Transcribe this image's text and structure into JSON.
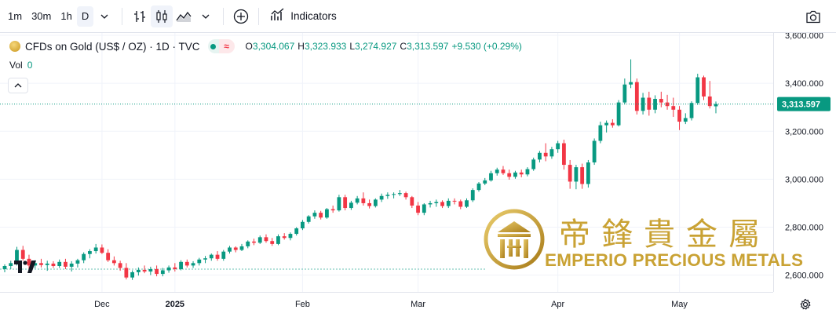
{
  "toolbar": {
    "intervals": [
      "1m",
      "30m",
      "1h",
      "D"
    ],
    "active_interval": "D",
    "indicators_label": "Indicators"
  },
  "legend": {
    "title": "CFDs on Gold (US$ / OZ) · 1D · TVC",
    "open_label": "O",
    "open": "3,304.067",
    "high_label": "H",
    "high": "3,323.933",
    "low_label": "L",
    "low": "3,274.927",
    "close_label": "C",
    "close": "3,313.597",
    "change": "+9.530 (+0.29%)",
    "vol_label": "Vol",
    "vol_value": "0",
    "pill_symbol": "≈"
  },
  "watermark": {
    "chinese": "帝鋒貴金屬",
    "english": "EMPERIO PRECIOUS METALS"
  },
  "colors": {
    "up": "#089981",
    "down": "#f23645",
    "grid": "#f0f3fa",
    "price_line": "#089981",
    "gold": "#c9a234"
  },
  "chart_data": {
    "type": "candlestick",
    "y_ticks": [
      "2,600.000",
      "2,800.000",
      "3,000.000",
      "3,200.000",
      "3,400.000",
      "3,600.000"
    ],
    "y_tick_values": [
      2600,
      2800,
      3000,
      3200,
      3400,
      3600
    ],
    "x_ticks": [
      "Dec",
      "2025",
      "Feb",
      "Mar",
      "Apr",
      "May"
    ],
    "ylim": [
      2530,
      3610
    ],
    "current_price": 3313.597,
    "current_price_label": "3,313.597",
    "reference_level": 2625,
    "grid": true,
    "candles": [
      [
        2625,
        2645,
        2612,
        2638
      ],
      [
        2638,
        2660,
        2625,
        2650
      ],
      [
        2650,
        2718,
        2640,
        2705
      ],
      [
        2705,
        2722,
        2660,
        2668
      ],
      [
        2668,
        2685,
        2625,
        2640
      ],
      [
        2640,
        2662,
        2628,
        2650
      ],
      [
        2650,
        2668,
        2632,
        2642
      ],
      [
        2642,
        2660,
        2618,
        2648
      ],
      [
        2648,
        2658,
        2630,
        2638
      ],
      [
        2638,
        2665,
        2630,
        2655
      ],
      [
        2655,
        2668,
        2625,
        2635
      ],
      [
        2635,
        2658,
        2615,
        2648
      ],
      [
        2648,
        2668,
        2632,
        2662
      ],
      [
        2662,
        2695,
        2650,
        2688
      ],
      [
        2688,
        2708,
        2670,
        2700
      ],
      [
        2700,
        2730,
        2690,
        2715
      ],
      [
        2715,
        2728,
        2688,
        2693
      ],
      [
        2693,
        2708,
        2655,
        2662
      ],
      [
        2662,
        2678,
        2640,
        2650
      ],
      [
        2650,
        2660,
        2618,
        2630
      ],
      [
        2630,
        2650,
        2582,
        2590
      ],
      [
        2590,
        2620,
        2580,
        2612
      ],
      [
        2612,
        2632,
        2598,
        2622
      ],
      [
        2622,
        2640,
        2608,
        2615
      ],
      [
        2615,
        2635,
        2600,
        2625
      ],
      [
        2625,
        2640,
        2595,
        2605
      ],
      [
        2605,
        2630,
        2595,
        2620
      ],
      [
        2620,
        2640,
        2610,
        2632
      ],
      [
        2632,
        2650,
        2615,
        2625
      ],
      [
        2625,
        2662,
        2620,
        2655
      ],
      [
        2655,
        2665,
        2632,
        2640
      ],
      [
        2640,
        2658,
        2630,
        2650
      ],
      [
        2650,
        2672,
        2640,
        2665
      ],
      [
        2665,
        2680,
        2650,
        2670
      ],
      [
        2670,
        2690,
        2660,
        2685
      ],
      [
        2685,
        2700,
        2660,
        2668
      ],
      [
        2668,
        2705,
        2660,
        2698
      ],
      [
        2698,
        2722,
        2690,
        2715
      ],
      [
        2715,
        2720,
        2695,
        2705
      ],
      [
        2705,
        2730,
        2700,
        2720
      ],
      [
        2720,
        2745,
        2712,
        2740
      ],
      [
        2740,
        2752,
        2725,
        2735
      ],
      [
        2735,
        2765,
        2730,
        2758
      ],
      [
        2758,
        2770,
        2735,
        2742
      ],
      [
        2742,
        2755,
        2722,
        2730
      ],
      [
        2730,
        2770,
        2725,
        2762
      ],
      [
        2762,
        2775,
        2748,
        2755
      ],
      [
        2755,
        2778,
        2745,
        2772
      ],
      [
        2772,
        2800,
        2765,
        2795
      ],
      [
        2795,
        2830,
        2788,
        2822
      ],
      [
        2822,
        2850,
        2815,
        2845
      ],
      [
        2845,
        2870,
        2835,
        2860
      ],
      [
        2860,
        2868,
        2832,
        2840
      ],
      [
        2840,
        2880,
        2835,
        2875
      ],
      [
        2875,
        2890,
        2860,
        2870
      ],
      [
        2870,
        2935,
        2865,
        2925
      ],
      [
        2925,
        2935,
        2870,
        2880
      ],
      [
        2880,
        2910,
        2872,
        2902
      ],
      [
        2902,
        2930,
        2895,
        2920
      ],
      [
        2920,
        2945,
        2890,
        2900
      ],
      [
        2900,
        2915,
        2878,
        2888
      ],
      [
        2888,
        2920,
        2882,
        2915
      ],
      [
        2915,
        2940,
        2905,
        2930
      ],
      [
        2930,
        2945,
        2918,
        2935
      ],
      [
        2935,
        2945,
        2920,
        2938
      ],
      [
        2938,
        2955,
        2930,
        2942
      ],
      [
        2942,
        2948,
        2915,
        2925
      ],
      [
        2925,
        2930,
        2880,
        2890
      ],
      [
        2890,
        2905,
        2850,
        2860
      ],
      [
        2860,
        2900,
        2850,
        2895
      ],
      [
        2895,
        2910,
        2882,
        2900
      ],
      [
        2900,
        2915,
        2885,
        2905
      ],
      [
        2905,
        2912,
        2880,
        2888
      ],
      [
        2888,
        2920,
        2880,
        2910
      ],
      [
        2910,
        2920,
        2895,
        2908
      ],
      [
        2908,
        2915,
        2875,
        2885
      ],
      [
        2885,
        2920,
        2880,
        2912
      ],
      [
        2912,
        2962,
        2905,
        2955
      ],
      [
        2955,
        2988,
        2948,
        2982
      ],
      [
        2982,
        3005,
        2975,
        2995
      ],
      [
        2995,
        3035,
        2990,
        3025
      ],
      [
        3025,
        3048,
        3015,
        3040
      ],
      [
        3040,
        3055,
        3018,
        3025
      ],
      [
        3025,
        3040,
        2998,
        3010
      ],
      [
        3010,
        3035,
        3002,
        3028
      ],
      [
        3028,
        3040,
        3008,
        3020
      ],
      [
        3020,
        3050,
        3012,
        3042
      ],
      [
        3042,
        3090,
        3035,
        3082
      ],
      [
        3082,
        3118,
        3070,
        3110
      ],
      [
        3110,
        3150,
        3075,
        3095
      ],
      [
        3095,
        3135,
        3085,
        3125
      ],
      [
        3125,
        3160,
        3110,
        3150
      ],
      [
        3150,
        3165,
        3040,
        3060
      ],
      [
        3060,
        3080,
        2960,
        2990
      ],
      [
        2990,
        3060,
        2958,
        3050
      ],
      [
        3050,
        3065,
        2960,
        2980
      ],
      [
        2980,
        3080,
        2965,
        3070
      ],
      [
        3070,
        3170,
        3060,
        3160
      ],
      [
        3160,
        3240,
        3150,
        3225
      ],
      [
        3225,
        3245,
        3195,
        3235
      ],
      [
        3235,
        3250,
        3215,
        3225
      ],
      [
        3225,
        3330,
        3220,
        3320
      ],
      [
        3320,
        3420,
        3312,
        3395
      ],
      [
        3395,
        3500,
        3380,
        3405
      ],
      [
        3405,
        3420,
        3270,
        3285
      ],
      [
        3285,
        3360,
        3270,
        3340
      ],
      [
        3340,
        3365,
        3265,
        3290
      ],
      [
        3290,
        3350,
        3275,
        3335
      ],
      [
        3335,
        3365,
        3300,
        3320
      ],
      [
        3320,
        3352,
        3290,
        3305
      ],
      [
        3305,
        3340,
        3260,
        3290
      ],
      [
        3290,
        3305,
        3205,
        3240
      ],
      [
        3240,
        3275,
        3230,
        3255
      ],
      [
        3255,
        3325,
        3245,
        3318
      ],
      [
        3318,
        3440,
        3310,
        3425
      ],
      [
        3425,
        3432,
        3330,
        3345
      ],
      [
        3345,
        3410,
        3295,
        3305
      ],
      [
        3304.067,
        3323.933,
        3274.927,
        3313.597
      ]
    ]
  }
}
